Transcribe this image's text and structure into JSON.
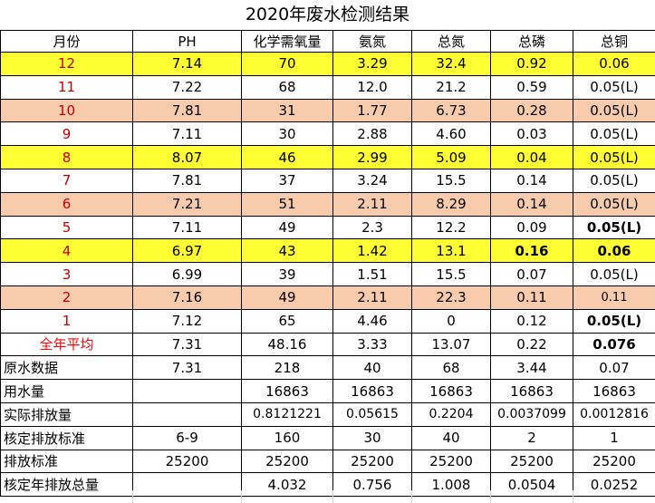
{
  "title": "2020年废水检测结果",
  "headers": [
    "月份",
    "PH",
    "化学需氧量",
    "氨氮",
    "总氮",
    "总磷",
    "总铜"
  ],
  "monthly_rows": [
    {
      "month": "12",
      "ph": "7.14",
      "cod": "70",
      "nh3n": "3.29",
      "tn": "32.4",
      "tp": "0.92",
      "cu": "0.06",
      "style": "yellow"
    },
    {
      "month": "11",
      "ph": "7.22",
      "cod": "68",
      "nh3n": "12.0",
      "tn": "21.2",
      "tp": "0.59",
      "cu": "0.05(L)",
      "style": "white"
    },
    {
      "month": "10",
      "ph": "7.81",
      "cod": "31",
      "nh3n": "1.77",
      "tn": "6.73",
      "tp": "0.28",
      "cu": "0.05(L)",
      "style": "salmon"
    },
    {
      "month": "9",
      "ph": "7.11",
      "cod": "30",
      "nh3n": "2.88",
      "tn": "4.60",
      "tp": "0.03",
      "cu": "0.05(L)",
      "style": "white"
    },
    {
      "month": "8",
      "ph": "8.07",
      "cod": "46",
      "nh3n": "2.99",
      "tn": "5.09",
      "tp": "0.04",
      "cu": "0.05(L)",
      "style": "yellow"
    },
    {
      "month": "7",
      "ph": "7.81",
      "cod": "37",
      "nh3n": "3.24",
      "tn": "15.5",
      "tp": "0.14",
      "cu": "0.05(L)",
      "style": "white"
    },
    {
      "month": "6",
      "ph": "7.21",
      "cod": "51",
      "nh3n": "2.11",
      "tn": "8.29",
      "tp": "0.14",
      "cu": "0.05(L)",
      "style": "salmon"
    },
    {
      "month": "5",
      "ph": "7.11",
      "cod": "49",
      "nh3n": "2.3",
      "tn": "12.2",
      "tp": "0.09",
      "cu": "0.05(L)",
      "style": "white"
    },
    {
      "month": "4",
      "ph": "6.97",
      "cod": "43",
      "nh3n": "1.42",
      "tn": "13.1",
      "tp": "0.16",
      "cu": "0.06",
      "style": "yellow"
    },
    {
      "month": "3",
      "ph": "6.99",
      "cod": "39",
      "nh3n": "1.51",
      "tn": "15.5",
      "tp": "0.07",
      "cu": "0.05(L)",
      "style": "white"
    },
    {
      "month": "2",
      "ph": "7.16",
      "cod": "49",
      "nh3n": "2.11",
      "tn": "22.3",
      "tp": "0.11",
      "cu": "0.11",
      "style": "salmon"
    },
    {
      "month": "1",
      "ph": "7.12",
      "cod": "65",
      "nh3n": "4.46",
      "tn": "0",
      "tp": "0.12",
      "cu": "0.05(L)",
      "style": "white"
    }
  ],
  "summary_rows": [
    {
      "label": "全年平均",
      "ph": "7.31",
      "cod": "48.16",
      "nh3n": "3.33",
      "tn": "13.07",
      "tp": "0.22",
      "cu": "0.076"
    },
    {
      "label": "原水数据",
      "ph": "7.31",
      "cod": "218",
      "nh3n": "40",
      "tn": "68",
      "tp": "3.44",
      "cu": "0.07"
    },
    {
      "label": "用水量",
      "ph": "",
      "cod": "16863",
      "nh3n": "16863",
      "tn": "16863",
      "tp": "16863",
      "cu": "16863"
    },
    {
      "label": "实际排放量",
      "ph": "",
      "cod": "0.8121221",
      "nh3n": "0.05615",
      "tn": "0.2204",
      "tp": "0.0037099",
      "cu": "0.0012816"
    },
    {
      "label": "核定排放标准",
      "ph": "6-9",
      "cod": "160",
      "nh3n": "30",
      "tn": "40",
      "tp": "2",
      "cu": "1"
    },
    {
      "label": "排放标准",
      "ph": "25200",
      "cod": "25200",
      "nh3n": "25200",
      "tn": "25200",
      "tp": "25200",
      "cu": "25200"
    },
    {
      "label": "核定年排放总量",
      "ph": "",
      "cod": "4.032",
      "nh3n": "0.756",
      "tn": "1.008",
      "tp": "0.0504",
      "cu": "0.0252"
    }
  ],
  "colors": {
    "highlight_yellow": "#ffff33",
    "highlight_salmon": "#f8cbad",
    "month_text": "#c00000",
    "average_label": "#ff0000"
  }
}
